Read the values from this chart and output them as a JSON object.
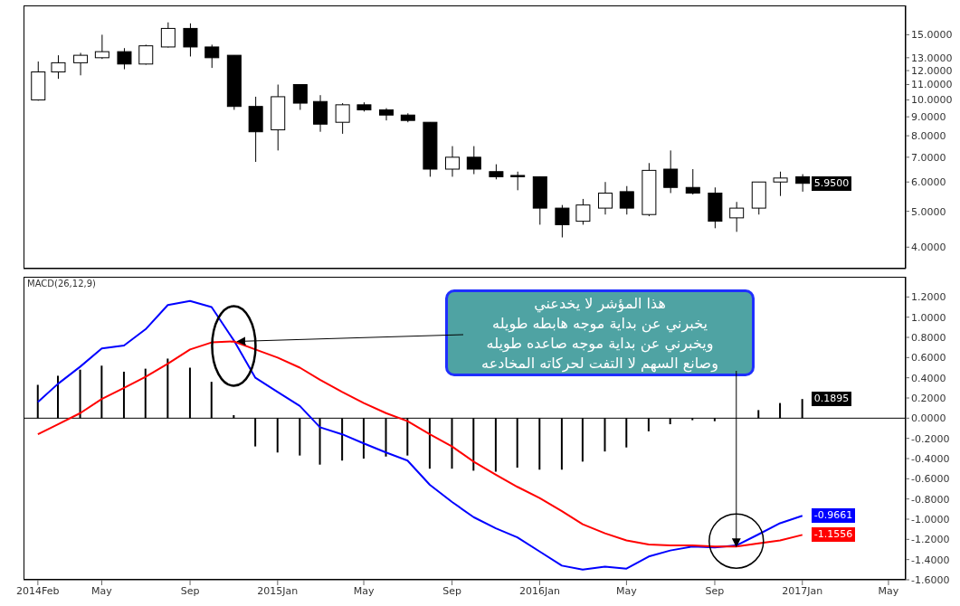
{
  "chart_data": [
    {
      "type": "candlestick",
      "log": true,
      "tick_labels": "y",
      "x": [
        "2014-02",
        "2014-03",
        "2014-04",
        "2014-05",
        "2014-06",
        "2014-07",
        "2014-08",
        "2014-09",
        "2014-10",
        "2014-11",
        "2014-12",
        "2015-01",
        "2015-02",
        "2015-03",
        "2015-04",
        "2015-05",
        "2015-06",
        "2015-07",
        "2015-08",
        "2015-09",
        "2015-10",
        "2015-11",
        "2015-12",
        "2016-01",
        "2016-02",
        "2016-03",
        "2016-04",
        "2016-05",
        "2016-06",
        "2016-07",
        "2016-08",
        "2016-09",
        "2016-10",
        "2016-11",
        "2016-12",
        "2017-01"
      ],
      "ohlc": [
        [
          10.0,
          12.7,
          9.95,
          11.9
        ],
        [
          11.9,
          13.2,
          11.4,
          12.6
        ],
        [
          12.6,
          13.4,
          11.65,
          13.2
        ],
        [
          13.0,
          15.0,
          12.9,
          13.5
        ],
        [
          13.5,
          13.8,
          12.1,
          12.5
        ],
        [
          12.5,
          14.1,
          12.45,
          14.0
        ],
        [
          13.9,
          16.2,
          13.85,
          15.6
        ],
        [
          15.6,
          16.1,
          13.1,
          13.9
        ],
        [
          13.9,
          14.1,
          12.2,
          13.0
        ],
        [
          13.2,
          13.2,
          9.4,
          9.6
        ],
        [
          9.6,
          10.2,
          6.8,
          8.2
        ],
        [
          8.3,
          11.0,
          7.3,
          10.2
        ],
        [
          11.0,
          11.0,
          9.4,
          9.8
        ],
        [
          9.9,
          10.3,
          8.2,
          8.6
        ],
        [
          8.7,
          9.8,
          8.1,
          9.7
        ],
        [
          9.7,
          9.85,
          9.3,
          9.4
        ],
        [
          9.4,
          9.5,
          8.8,
          9.1
        ],
        [
          9.1,
          9.2,
          8.7,
          8.8
        ],
        [
          8.7,
          8.7,
          6.2,
          6.5
        ],
        [
          6.5,
          7.5,
          6.2,
          7.0
        ],
        [
          7.0,
          7.5,
          6.3,
          6.5
        ],
        [
          6.4,
          6.7,
          6.1,
          6.2
        ],
        [
          6.25,
          6.4,
          5.7,
          6.2
        ],
        [
          6.2,
          6.2,
          4.6,
          5.1
        ],
        [
          5.1,
          5.2,
          4.25,
          4.6
        ],
        [
          4.7,
          5.4,
          4.6,
          5.2
        ],
        [
          5.1,
          6.0,
          4.9,
          5.6
        ],
        [
          5.65,
          5.85,
          4.9,
          5.1
        ],
        [
          4.9,
          6.75,
          4.85,
          6.45
        ],
        [
          6.5,
          7.3,
          5.6,
          5.8
        ],
        [
          5.8,
          6.5,
          5.55,
          5.6
        ],
        [
          5.6,
          5.8,
          4.5,
          4.7
        ],
        [
          4.8,
          5.3,
          4.4,
          5.1
        ],
        [
          5.1,
          6.0,
          4.9,
          6.0
        ],
        [
          6.0,
          6.4,
          5.5,
          6.15
        ],
        [
          6.2,
          6.3,
          5.65,
          5.95
        ]
      ],
      "xlim": [
        "2014-01-12",
        "2017-05-25"
      ],
      "ylim": [
        3.5,
        18
      ],
      "yticks": [
        {
          "value": 4,
          "label": "4.0000"
        },
        {
          "value": 5,
          "label": "5.0000"
        },
        {
          "value": 6,
          "label": "6.0000"
        },
        {
          "value": 7,
          "label": "7.0000"
        },
        {
          "value": 8,
          "label": "8.0000"
        },
        {
          "value": 9,
          "label": "9.0000"
        },
        {
          "value": 10,
          "label": "10.0000"
        },
        {
          "value": 11,
          "label": "11.0000"
        },
        {
          "value": 12,
          "label": "12.0000"
        },
        {
          "value": 13,
          "label": "13.0000"
        },
        {
          "value": 15,
          "label": "15.0000"
        }
      ],
      "annotations": [
        {
          "text": "5.9500",
          "x": "2017-01",
          "y": 5.95
        }
      ]
    },
    {
      "type": "line",
      "title": "MACD(26,12,9)",
      "x": [
        "2014-02",
        "2014-03",
        "2014-04",
        "2014-05",
        "2014-06",
        "2014-07",
        "2014-08",
        "2014-09",
        "2014-10",
        "2014-11",
        "2014-12",
        "2015-01",
        "2015-02",
        "2015-03",
        "2015-04",
        "2015-05",
        "2015-06",
        "2015-07",
        "2015-08",
        "2015-09",
        "2015-10",
        "2015-11",
        "2015-12",
        "2016-01",
        "2016-02",
        "2016-03",
        "2016-04",
        "2016-05",
        "2016-06",
        "2016-07",
        "2016-08",
        "2016-09",
        "2016-10",
        "2016-11",
        "2016-12",
        "2017-01"
      ],
      "series": [
        {
          "type": "bar",
          "color": "#000000",
          "values": [
            0.33,
            0.42,
            0.48,
            0.52,
            0.46,
            0.49,
            0.59,
            0.5,
            0.36,
            0.03,
            -0.28,
            -0.34,
            -0.37,
            -0.46,
            -0.42,
            -0.4,
            -0.38,
            -0.37,
            -0.5,
            -0.5,
            -0.52,
            -0.53,
            -0.49,
            -0.51,
            -0.51,
            -0.43,
            -0.33,
            -0.29,
            -0.13,
            -0.06,
            -0.02,
            -0.03,
            0,
            0.08,
            0.15,
            0.1895
          ]
        },
        {
          "type": "line",
          "color": "#0000ff",
          "values": [
            0.16,
            0.34,
            0.51,
            0.69,
            0.72,
            0.88,
            1.12,
            1.16,
            1.1,
            0.77,
            0.4,
            0.26,
            0.12,
            -0.09,
            -0.16,
            -0.25,
            -0.34,
            -0.42,
            -0.66,
            -0.83,
            -0.98,
            -1.09,
            -1.18,
            -1.32,
            -1.46,
            -1.5,
            -1.47,
            -1.49,
            -1.37,
            -1.31,
            -1.27,
            -1.28,
            -1.26,
            -1.15,
            -1.04,
            -0.9661
          ]
        },
        {
          "type": "line",
          "color": "#ff0000",
          "values": [
            -0.16,
            -0.06,
            0.05,
            0.19,
            0.3,
            0.41,
            0.54,
            0.68,
            0.75,
            0.76,
            0.68,
            0.6,
            0.5,
            0.38,
            0.26,
            0.15,
            0.05,
            -0.03,
            -0.16,
            -0.28,
            -0.43,
            -0.56,
            -0.68,
            -0.79,
            -0.92,
            -1.05,
            -1.14,
            -1.21,
            -1.25,
            -1.26,
            -1.26,
            -1.27,
            -1.27,
            -1.24,
            -1.21,
            -1.1556
          ]
        }
      ],
      "xlim": [
        "2014-01-12",
        "2017-05-25"
      ],
      "xticks": [
        {
          "value": "2014-02",
          "label": "2014Feb"
        },
        {
          "value": "2014-05",
          "label": "May"
        },
        {
          "value": "2014-09",
          "label": "Sep"
        },
        {
          "value": "2015-01",
          "label": "2015Jan"
        },
        {
          "value": "2015-05",
          "label": "May"
        },
        {
          "value": "2015-09",
          "label": "Sep"
        },
        {
          "value": "2016-01",
          "label": "2016Jan"
        },
        {
          "value": "2016-05",
          "label": "May"
        },
        {
          "value": "2016-09",
          "label": "Sep"
        },
        {
          "value": "2017-01",
          "label": "2017Jan"
        },
        {
          "value": "2017-05",
          "label": "May"
        }
      ],
      "ylim": [
        -1.6,
        1.4
      ],
      "yticks": [
        {
          "value": -1.6,
          "label": "-1.6000"
        },
        {
          "value": -1.4,
          "label": "-1.4000"
        },
        {
          "value": -1.2,
          "label": "-1.2000"
        },
        {
          "value": -1,
          "label": "-1.0000"
        },
        {
          "value": -0.8,
          "label": "-0.8000"
        },
        {
          "value": -0.6,
          "label": "-0.6000"
        },
        {
          "value": -0.4,
          "label": "-0.4000"
        },
        {
          "value": -0.2,
          "label": "-0.2000"
        },
        {
          "value": 0,
          "label": "0.0000"
        },
        {
          "value": 0.2,
          "label": "0.2000"
        },
        {
          "value": 0.4,
          "label": "0.4000"
        },
        {
          "value": 0.6,
          "label": "0.6000"
        },
        {
          "value": 0.8,
          "label": "0.8000"
        },
        {
          "value": 1,
          "label": "1.0000"
        },
        {
          "value": 1.2,
          "label": "1.2000"
        }
      ],
      "ref_lines": [
        {
          "axis": "y",
          "value": 0,
          "color": "#000000"
        }
      ],
      "annotations": [
        {
          "text": "هذا المؤشر لا يخدعني\nيخبرني عن بداية موجه هابطه طويله\nويخبرني عن بداية موجه صاعده طويله\nوصانع السهم لا التفت لحركاته المخادعه",
          "x": "2016-10",
          "y": -1.27
        },
        {
          "text": "0.1895",
          "x": "2017-01",
          "y": 0.1895
        },
        {
          "text": "-0.9661",
          "x": "2017-01",
          "y": -0.9661
        },
        {
          "text": "-1.1556",
          "x": "2017-01",
          "y": -1.1556
        }
      ]
    }
  ]
}
